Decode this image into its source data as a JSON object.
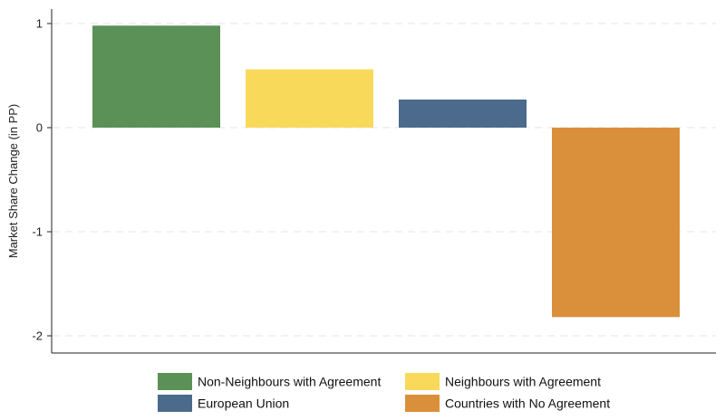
{
  "chart_data": {
    "type": "bar",
    "title": "",
    "xlabel": "",
    "ylabel": "Market Share Change (in PP)",
    "ylim": [
      -2.1,
      1.1
    ],
    "yticks": [
      1,
      0,
      -1,
      -2
    ],
    "ytick_labels": [
      "1",
      "0",
      "-1",
      "-2"
    ],
    "grid": true,
    "legend_position": "bottom",
    "series": [
      {
        "name": "Non-Neighbours with Agreement",
        "value": 0.98,
        "color": "#5b9156"
      },
      {
        "name": "Neighbours with Agreement",
        "value": 0.56,
        "color": "#f8d95a"
      },
      {
        "name": "European Union",
        "value": 0.27,
        "color": "#4b6a8c"
      },
      {
        "name": "Countries with No Agreement",
        "value": -1.82,
        "color": "#da8f3a"
      }
    ]
  }
}
